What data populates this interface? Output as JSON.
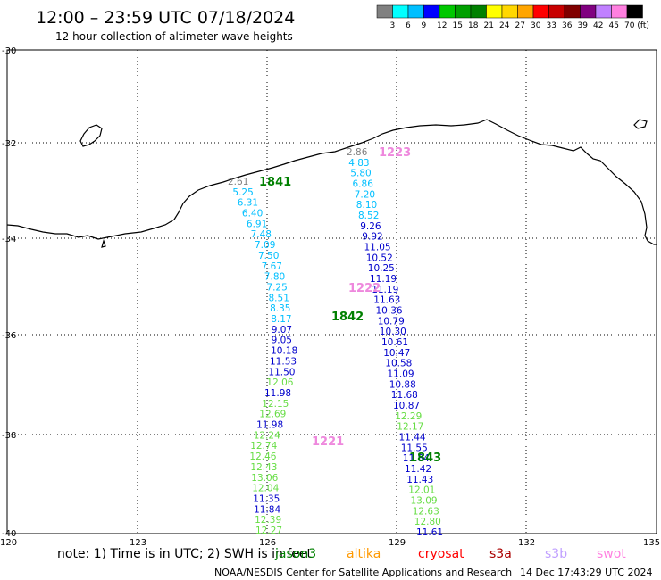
{
  "header": {
    "title": "12:00 – 23:59 UTC 07/18/2024",
    "subtitle": "12 hour collection of altimeter wave heights"
  },
  "legend": {
    "colors": [
      "#808080",
      "#00ffff",
      "#00bfff",
      "#0000ff",
      "#00c800",
      "#00a000",
      "#008000",
      "#ffff00",
      "#ffd700",
      "#ffa500",
      "#ff0000",
      "#c80000",
      "#800000",
      "#800080",
      "#c080ff",
      "#ff80e0",
      "#000000"
    ],
    "labels": [
      "3",
      "6",
      "9",
      "12",
      "15",
      "18",
      "21",
      "24",
      "27",
      "30",
      "33",
      "36",
      "39",
      "42",
      "45",
      "70 (ft)"
    ]
  },
  "axes": {
    "x_ticks": [
      "120",
      "123",
      "126",
      "129",
      "132",
      "135"
    ],
    "y_ticks": [
      "-30",
      "-32",
      "-34",
      "-36",
      "-38",
      "-40"
    ]
  },
  "tracks": [
    {
      "time_label": "1841",
      "time_color": "#008000",
      "points": [
        {
          "t": "2.61",
          "c": "#808080"
        },
        {
          "t": "5.25",
          "c": "#00bfff"
        },
        {
          "t": "6.31",
          "c": "#00bfff"
        },
        {
          "t": "6.40",
          "c": "#00bfff"
        },
        {
          "t": "6.91",
          "c": "#00bfff"
        },
        {
          "t": "7.48",
          "c": "#00bfff"
        },
        {
          "t": "7.09",
          "c": "#00bfff"
        },
        {
          "t": "7.50",
          "c": "#00bfff"
        },
        {
          "t": "7.67",
          "c": "#00bfff"
        },
        {
          "t": "7.80",
          "c": "#00bfff"
        },
        {
          "t": "7.25",
          "c": "#00bfff"
        },
        {
          "t": "8.51",
          "c": "#00bfff"
        },
        {
          "t": "8.35",
          "c": "#00bfff"
        },
        {
          "t": "8.17",
          "c": "#00bfff"
        },
        {
          "t": "9.07",
          "c": "#0000cc"
        },
        {
          "t": "9.05",
          "c": "#0000cc"
        },
        {
          "t": "10.18",
          "c": "#0000cc"
        },
        {
          "t": "11.53",
          "c": "#0000cc"
        },
        {
          "t": "11.50",
          "c": "#0000cc"
        },
        {
          "t": "12.06",
          "c": "#66dd44"
        },
        {
          "t": "11.98",
          "c": "#0000cc"
        },
        {
          "t": "12.15",
          "c": "#66dd44"
        },
        {
          "t": "12.69",
          "c": "#66dd44"
        },
        {
          "t": "11.98",
          "c": "#0000cc"
        },
        {
          "t": "12.24",
          "c": "#66dd44"
        },
        {
          "t": "12.74",
          "c": "#66dd44"
        },
        {
          "t": "12.46",
          "c": "#66dd44"
        },
        {
          "t": "12.43",
          "c": "#66dd44"
        },
        {
          "t": "13.06",
          "c": "#66dd44"
        },
        {
          "t": "12.04",
          "c": "#66dd44"
        },
        {
          "t": "11.35",
          "c": "#0000cc"
        },
        {
          "t": "11.84",
          "c": "#0000cc"
        },
        {
          "t": "12.39",
          "c": "#66dd44"
        },
        {
          "t": "12.27",
          "c": "#66dd44"
        }
      ]
    },
    {
      "time_label": "1842",
      "time_color": "#008000",
      "points": [
        {
          "t": "2.86",
          "c": "#808080"
        },
        {
          "t": "4.83",
          "c": "#00bfff"
        },
        {
          "t": "5.80",
          "c": "#00bfff"
        },
        {
          "t": "6.86",
          "c": "#00bfff"
        },
        {
          "t": "7.20",
          "c": "#00bfff"
        },
        {
          "t": "8.10",
          "c": "#00bfff"
        },
        {
          "t": "8.52",
          "c": "#00bfff"
        },
        {
          "t": "9.26",
          "c": "#0000cc"
        },
        {
          "t": "9.92",
          "c": "#0000cc"
        },
        {
          "t": "11.05",
          "c": "#0000cc"
        },
        {
          "t": "10.52",
          "c": "#0000cc"
        },
        {
          "t": "10.25",
          "c": "#0000cc"
        },
        {
          "t": "11.19",
          "c": "#0000cc"
        },
        {
          "t": "11.19",
          "c": "#0000cc"
        },
        {
          "t": "11.63",
          "c": "#0000cc"
        },
        {
          "t": "10.36",
          "c": "#0000cc"
        },
        {
          "t": "10.79",
          "c": "#0000cc"
        },
        {
          "t": "10.30",
          "c": "#0000cc"
        },
        {
          "t": "10.61",
          "c": "#0000cc"
        },
        {
          "t": "10.47",
          "c": "#0000cc"
        },
        {
          "t": "10.58",
          "c": "#0000cc"
        },
        {
          "t": "11.09",
          "c": "#0000cc"
        },
        {
          "t": "10.88",
          "c": "#0000cc"
        },
        {
          "t": "11.68",
          "c": "#0000cc"
        },
        {
          "t": "10.87",
          "c": "#0000cc"
        },
        {
          "t": "12.29",
          "c": "#66dd44"
        },
        {
          "t": "12.17",
          "c": "#66dd44"
        },
        {
          "t": "11.44",
          "c": "#0000cc"
        },
        {
          "t": "11.55",
          "c": "#0000cc"
        },
        {
          "t": "11.84",
          "c": "#0000cc"
        },
        {
          "t": "11.42",
          "c": "#0000cc"
        },
        {
          "t": "11.43",
          "c": "#0000cc"
        },
        {
          "t": "12.01",
          "c": "#66dd44"
        },
        {
          "t": "13.09",
          "c": "#66dd44"
        },
        {
          "t": "12.63",
          "c": "#66dd44"
        },
        {
          "t": "12.80",
          "c": "#66dd44"
        },
        {
          "t": "11.61",
          "c": "#0000cc"
        }
      ]
    }
  ],
  "extra_time_labels": [
    {
      "t": "1223",
      "c": "#ee88dd"
    },
    {
      "t": "1222",
      "c": "#ee88dd"
    },
    {
      "t": "1221",
      "c": "#ee88dd"
    },
    {
      "t": "1843",
      "c": "#008000"
    }
  ],
  "note": {
    "text": "note:  1) Time is in UTC; 2) SWH is in feet",
    "satellites": [
      {
        "name": "jason3",
        "color": "#008000"
      },
      {
        "name": "altika",
        "color": "#ff9900"
      },
      {
        "name": "cryosat",
        "color": "#ff0000"
      },
      {
        "name": "s3a",
        "color": "#aa0000"
      },
      {
        "name": "s3b",
        "color": "#c0a0ff"
      },
      {
        "name": "swot",
        "color": "#ff80e0"
      }
    ]
  },
  "footer": {
    "credit": "NOAA/NESDIS Center for Satellite Applications and Research",
    "timestamp": "14 Dec 17:43:29 UTC 2024"
  }
}
